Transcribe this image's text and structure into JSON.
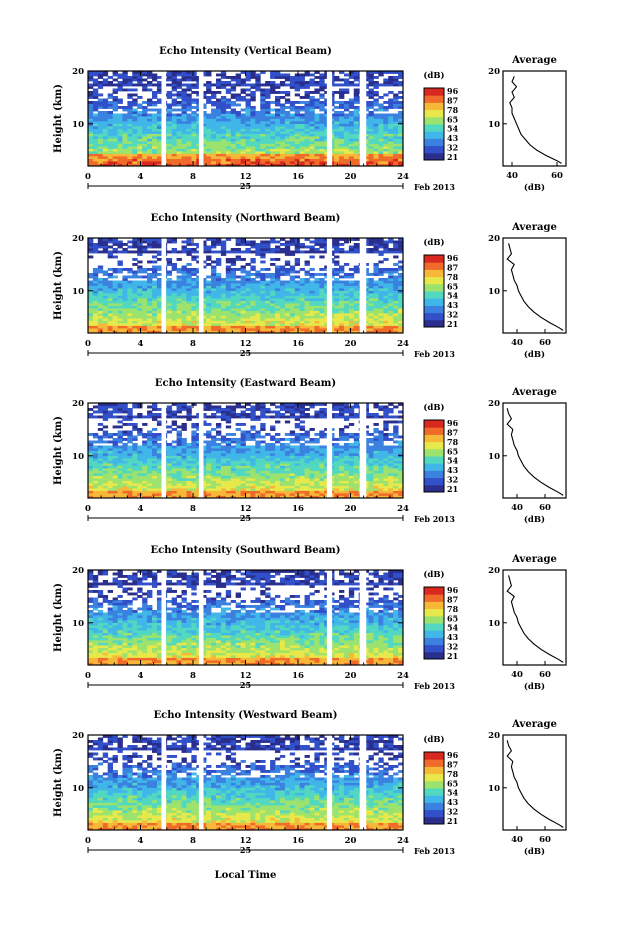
{
  "figure": {
    "x_axis_label": "Local Time",
    "date_label": "25",
    "month_label": "Feb 2013",
    "colorbar_unit": "(dB)",
    "colorbar_ticks": [
      "96",
      "87",
      "78",
      "65",
      "54",
      "43",
      "32",
      "21"
    ],
    "colormap": [
      "#2a2f8e",
      "#3150c9",
      "#3b82e0",
      "#41b6e8",
      "#52d8c0",
      "#9be36e",
      "#e7e84a",
      "#f7b83a",
      "#f06a2a",
      "#d8281f"
    ],
    "gap_hours": [
      [
        5.6,
        5.95
      ],
      [
        8.45,
        8.8
      ],
      [
        18.2,
        18.6
      ],
      [
        20.7,
        21.2
      ]
    ],
    "x_ticks": [
      0,
      4,
      8,
      12,
      16,
      20,
      24
    ],
    "y_ticks": [
      10,
      20
    ]
  },
  "chart_data": [
    {
      "type": "heatmap",
      "title": "Echo Intensity (Vertical Beam)",
      "xlabel": "",
      "ylabel": "Height (km)",
      "xlim": [
        0,
        24
      ],
      "ylim": [
        2,
        20
      ],
      "colorbar_range_db": [
        21,
        96
      ],
      "profile": {
        "title": "Average",
        "xlabel": "(dB)",
        "x_ticks": [
          40,
          60
        ],
        "xlim": [
          36,
          64
        ],
        "ylim": [
          2,
          20
        ],
        "height_km": [
          2.5,
          3,
          4,
          5,
          6,
          7,
          8,
          9,
          10,
          11,
          12,
          13,
          14,
          15,
          16,
          17,
          18,
          19
        ],
        "db": [
          62,
          60,
          55,
          51,
          48,
          46,
          44,
          43,
          42,
          41,
          40,
          40,
          39,
          41,
          40,
          42,
          40,
          41
        ]
      }
    },
    {
      "type": "heatmap",
      "title": "Echo Intensity (Northward Beam)",
      "xlabel": "",
      "ylabel": "Height (km)",
      "xlim": [
        0,
        24
      ],
      "ylim": [
        2,
        20
      ],
      "colorbar_range_db": [
        21,
        96
      ],
      "profile": {
        "title": "Average",
        "xlabel": "(dB)",
        "x_ticks": [
          40,
          60
        ],
        "xlim": [
          30,
          75
        ],
        "ylim": [
          2,
          20
        ],
        "height_km": [
          2.5,
          3,
          4,
          5,
          6,
          7,
          8,
          9,
          10,
          11,
          12,
          13,
          14,
          15,
          16,
          17,
          18,
          19
        ],
        "db": [
          73,
          70,
          63,
          57,
          52,
          48,
          45,
          43,
          41,
          40,
          38,
          37,
          36,
          38,
          33,
          36,
          35,
          34
        ]
      }
    },
    {
      "type": "heatmap",
      "title": "Echo Intensity (Eastward Beam)",
      "xlabel": "",
      "ylabel": "Height (km)",
      "xlim": [
        0,
        24
      ],
      "ylim": [
        2,
        20
      ],
      "colorbar_range_db": [
        21,
        96
      ],
      "profile": {
        "title": "Average",
        "xlabel": "(dB)",
        "x_ticks": [
          40,
          60
        ],
        "xlim": [
          30,
          75
        ],
        "ylim": [
          2,
          20
        ],
        "height_km": [
          2.5,
          3,
          4,
          5,
          6,
          7,
          8,
          9,
          10,
          11,
          12,
          13,
          14,
          15,
          16,
          17,
          18,
          19
        ],
        "db": [
          73,
          70,
          63,
          57,
          52,
          48,
          45,
          43,
          41,
          40,
          38,
          37,
          36,
          37,
          33,
          36,
          34,
          33
        ]
      }
    },
    {
      "type": "heatmap",
      "title": "Echo Intensity (Southward Beam)",
      "xlabel": "",
      "ylabel": "Height (km)",
      "xlim": [
        0,
        24
      ],
      "ylim": [
        2,
        20
      ],
      "colorbar_range_db": [
        21,
        96
      ],
      "profile": {
        "title": "Average",
        "xlabel": "(dB)",
        "x_ticks": [
          40,
          60
        ],
        "xlim": [
          30,
          75
        ],
        "ylim": [
          2,
          20
        ],
        "height_km": [
          2.5,
          3,
          4,
          5,
          6,
          7,
          8,
          9,
          10,
          11,
          12,
          13,
          14,
          15,
          16,
          17,
          18,
          19
        ],
        "db": [
          73,
          70,
          63,
          57,
          52,
          48,
          45,
          43,
          41,
          40,
          38,
          37,
          36,
          38,
          33,
          36,
          35,
          34
        ]
      }
    },
    {
      "type": "heatmap",
      "title": "Echo Intensity (Westward Beam)",
      "xlabel": "",
      "ylabel": "Height (km)",
      "xlim": [
        0,
        24
      ],
      "ylim": [
        2,
        20
      ],
      "colorbar_range_db": [
        21,
        96
      ],
      "profile": {
        "title": "Average",
        "xlabel": "(dB)",
        "x_ticks": [
          40,
          60
        ],
        "xlim": [
          30,
          75
        ],
        "ylim": [
          2,
          20
        ],
        "height_km": [
          2.5,
          3,
          4,
          5,
          6,
          7,
          8,
          9,
          10,
          11,
          12,
          13,
          14,
          15,
          16,
          17,
          18,
          19
        ],
        "db": [
          73,
          70,
          63,
          57,
          52,
          48,
          45,
          43,
          41,
          40,
          38,
          37,
          36,
          37,
          33,
          36,
          34,
          33
        ]
      }
    }
  ]
}
